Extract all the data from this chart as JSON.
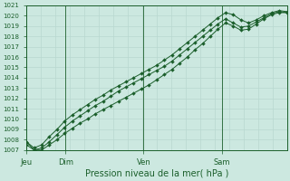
{
  "title": "",
  "xlabel": "Pression niveau de la mer( hPa )",
  "bg_color": "#cce8e0",
  "grid_color": "#b8d8d0",
  "line_color": "#1a5e2a",
  "axis_color": "#1a5e2a",
  "text_color": "#1a5e2a",
  "ylim": [
    1007,
    1021
  ],
  "yticks": [
    1007,
    1008,
    1009,
    1010,
    1011,
    1012,
    1013,
    1014,
    1015,
    1016,
    1017,
    1018,
    1019,
    1020,
    1021
  ],
  "day_labels": [
    "Jeu",
    "Dim",
    "Ven",
    "Sam"
  ],
  "day_positions": [
    0,
    36,
    108,
    180
  ],
  "total_steps": 240,
  "series": [
    [
      1007.8,
      1007.2,
      1007.5,
      1008.3,
      1009.0,
      1009.8,
      1010.4,
      1010.9,
      1011.4,
      1011.9,
      1012.3,
      1012.8,
      1013.2,
      1013.6,
      1014.0,
      1014.4,
      1014.8,
      1015.2,
      1015.7,
      1016.2,
      1016.8,
      1017.4,
      1018.0,
      1018.6,
      1019.2,
      1019.8,
      1020.3,
      1020.1,
      1019.6,
      1019.3,
      1019.6,
      1020.0,
      1020.3,
      1020.5,
      1020.4
    ],
    [
      1007.8,
      1007.0,
      1007.0,
      1007.5,
      1008.0,
      1008.6,
      1009.1,
      1009.6,
      1010.0,
      1010.5,
      1010.9,
      1011.3,
      1011.7,
      1012.1,
      1012.5,
      1012.9,
      1013.3,
      1013.8,
      1014.3,
      1014.8,
      1015.4,
      1016.0,
      1016.7,
      1017.3,
      1018.0,
      1018.7,
      1019.3,
      1019.0,
      1018.6,
      1018.7,
      1019.2,
      1019.7,
      1020.1,
      1020.3,
      1020.3
    ],
    [
      1007.5,
      1007.0,
      1007.2,
      1007.8,
      1008.5,
      1009.2,
      1009.8,
      1010.3,
      1010.8,
      1011.3,
      1011.7,
      1012.2,
      1012.7,
      1013.1,
      1013.5,
      1013.9,
      1014.3,
      1014.7,
      1015.1,
      1015.6,
      1016.2,
      1016.8,
      1017.4,
      1018.0,
      1018.6,
      1019.2,
      1019.7,
      1019.3,
      1018.9,
      1019.0,
      1019.4,
      1019.8,
      1020.2,
      1020.4,
      1020.3
    ]
  ]
}
